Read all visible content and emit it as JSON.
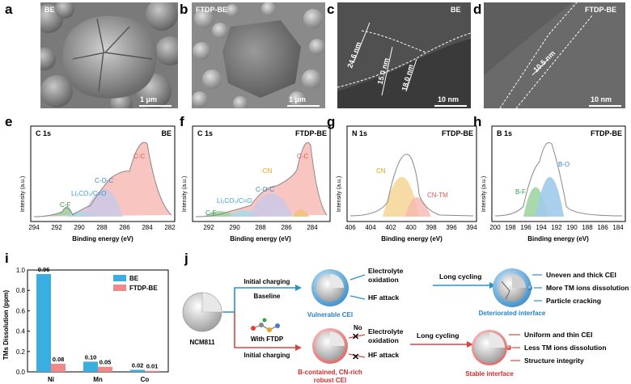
{
  "panels": {
    "a": {
      "letter": "a",
      "tag": "BE",
      "scale": "1 μm"
    },
    "b": {
      "letter": "b",
      "tag": "FTDP-BE",
      "scale": "1 μm"
    },
    "c": {
      "letter": "c",
      "tag": "BE",
      "scale": "10 nm",
      "m1": "24.6 nm",
      "m2": "15.0 nm",
      "m3": "18.0 nm"
    },
    "d": {
      "letter": "d",
      "tag": "FTDP-BE",
      "scale": "10 nm",
      "m1": "10.5 nm"
    }
  },
  "xps": [
    {
      "letter": "e",
      "title": "C 1s",
      "sample": "BE",
      "xlabel": "Binding energy (eV)",
      "ylabel": "Intensity (a.u.)",
      "ticks": [
        "294",
        "292",
        "290",
        "288",
        "286",
        "284",
        "282"
      ],
      "peaks": [
        {
          "label": "C-C",
          "color": "#e0584f"
        },
        {
          "label": "C-O-C",
          "color": "#3b87c9"
        },
        {
          "label": "Li₂CO₃/C=O",
          "color": "#3b9fc4"
        },
        {
          "label": "C-F",
          "color": "#2e9a4a"
        }
      ]
    },
    {
      "letter": "f",
      "title": "C 1s",
      "sample": "FTDP-BE",
      "xlabel": "Binding energy (eV)",
      "ylabel": "Intensity (a.u.)",
      "ticks": [
        "292",
        "290",
        "288",
        "286",
        "284"
      ],
      "peaks": [
        {
          "label": "C-C",
          "color": "#e0584f"
        },
        {
          "label": "-CN",
          "color": "#e8a020"
        },
        {
          "label": "C-O-C",
          "color": "#3b87c9"
        },
        {
          "label": "Li₂CO₃/C=O",
          "color": "#3b9fc4"
        },
        {
          "label": "C-F",
          "color": "#2e9a4a"
        }
      ]
    },
    {
      "letter": "g",
      "title": "N 1s",
      "sample": "FTDP-BE",
      "xlabel": "Binding energy (eV)",
      "ylabel": "Intensity (a.u.)",
      "ticks": [
        "406",
        "404",
        "402",
        "400",
        "398",
        "396",
        "394"
      ],
      "peaks": [
        {
          "label": "CN",
          "color": "#e8a020"
        },
        {
          "label": "CN-TM",
          "color": "#e0584f"
        }
      ]
    },
    {
      "letter": "h",
      "title": "B 1s",
      "sample": "FTDP-BE",
      "xlabel": "Binding energy (eV)",
      "ylabel": "Intensity (a.u.)",
      "ticks": [
        "200",
        "198",
        "196",
        "194",
        "192",
        "190",
        "188",
        "186",
        "184"
      ],
      "peaks": [
        {
          "label": "B-O",
          "color": "#3b87c9"
        },
        {
          "label": "B-F",
          "color": "#2e9a4a"
        }
      ]
    }
  ],
  "chart_data": [
    {
      "type": "bar",
      "panel": "i",
      "ylabel": "TMs Dissolution (ppm)",
      "categories": [
        "Ni",
        "Mn",
        "Co"
      ],
      "ylim": [
        0,
        1.0
      ],
      "yticks": [
        "0.0",
        "0.2",
        "0.4",
        "0.6",
        "0.8",
        "1.0"
      ],
      "series": [
        {
          "name": "BE",
          "color": "#3aaee0",
          "values": [
            0.96,
            0.1,
            0.02
          ],
          "labels": [
            "0.96",
            "0.10",
            "0.02"
          ]
        },
        {
          "name": "FTDP-BE",
          "color": "#f08a8a",
          "values": [
            0.08,
            0.05,
            0.01
          ],
          "labels": [
            "0.08",
            "0.05",
            "0.01"
          ]
        }
      ],
      "legend": "top-right"
    }
  ],
  "schematic": {
    "letter": "j",
    "particle": "NCM811",
    "top_path1": "Initial charging",
    "top_path2": "Baseline",
    "bot_path1": "With FTDP",
    "bot_path2": "Initial charging",
    "vulnerable": "Vulnerable CEI",
    "robust1": "B-contained, CN-rich",
    "robust2": "robust CEI",
    "top_attack": [
      "Electrolyte",
      "oxidation",
      "HF attack"
    ],
    "bot_attack": [
      "Electrolyte",
      "oxidation",
      "HF attack"
    ],
    "no": "No",
    "long": "Long cycling",
    "deteriorated": "Deteriorated interface",
    "stable": "Stable interface",
    "top_out": [
      "Uneven and thick CEI",
      "More TM ions dissolution",
      "Particle cracking"
    ],
    "bot_out": [
      "Uniform and thin CEI",
      "Less TM ions dissolution",
      "Structure integrity"
    ]
  }
}
